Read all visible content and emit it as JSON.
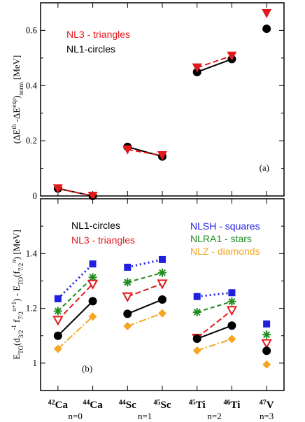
{
  "chart_data": [
    {
      "panel": "(a)",
      "type": "line",
      "ylabel_html": "(ΔE<tspan baseline-shift='super' font-size='9'>th</tspan> -ΔE<tspan baseline-shift='super' font-size='9'>exp</tspan>)<tspan baseline-shift='sub' font-size='9'>norm</tspan> [MeV]",
      "ylim": [
        0,
        0.7
      ],
      "yticks": [
        "0",
        "0.2",
        "0.4",
        "0.6"
      ],
      "legend": [
        {
          "text": "NL3 - triangles",
          "color": "#e31a1c"
        },
        {
          "text": "NL1-circles",
          "color": "#000000"
        }
      ],
      "series": [
        {
          "name": "NL1",
          "color": "#000000",
          "marker": "circle",
          "segments": [
            [
              [
                1,
                0.027
              ],
              [
                2,
                0.0
              ]
            ],
            [
              [
                3,
                0.178
              ],
              [
                4,
                0.143
              ]
            ],
            [
              [
                5,
                0.449
              ],
              [
                6,
                0.496
              ]
            ],
            [
              [
                7,
                0.606
              ]
            ]
          ]
        },
        {
          "name": "NL3",
          "color": "#e31a1c",
          "marker": "triangle-down",
          "dashed": true,
          "segments": [
            [
              [
                1,
                0.027
              ],
              [
                2,
                0.0
              ]
            ],
            [
              [
                3,
                0.168
              ],
              [
                4,
                0.147
              ]
            ],
            [
              [
                5,
                0.465
              ],
              [
                6,
                0.508
              ]
            ],
            [
              [
                7,
                0.662
              ]
            ]
          ]
        }
      ]
    },
    {
      "panel": "(b)",
      "type": "line",
      "ylabel_html": "E<tspan baseline-shift='sub' font-size='9'>TO</tspan>(d<tspan baseline-shift='sub' font-size='9'>3/2</tspan><tspan baseline-shift='super' font-size='9'>-1</tspan> f<tspan baseline-shift='sub' font-size='9'>7/2</tspan><tspan baseline-shift='super' font-size='9'>n+1</tspan>) - E<tspan baseline-shift='sub' font-size='9'>TO</tspan>(f<tspan baseline-shift='sub' font-size='9'>7/2</tspan><tspan baseline-shift='super' font-size='9'>n</tspan>) [MeV]",
      "ylim": [
        0.9,
        1.6
      ],
      "yticks": [
        "1",
        "1.2",
        "1.4"
      ],
      "legend_left": [
        {
          "text": "NL1-circles",
          "color": "#000000"
        },
        {
          "text": "NL3 - triangles",
          "color": "#e31a1c"
        }
      ],
      "legend_right": [
        {
          "text": "NLSH - squares",
          "color": "#1f1fe0"
        },
        {
          "text": "NLRA1 - stars",
          "color": "#1e8c1e"
        },
        {
          "text": "NLZ - diamonds",
          "color": "#f5a623"
        }
      ],
      "categories": [
        "42Ca",
        "44Ca",
        "44Sc",
        "45Sc",
        "45Ti",
        "46Ti",
        "47V"
      ],
      "category_labels": [
        {
          "mass": "42",
          "el": "Ca"
        },
        {
          "mass": "44",
          "el": "Ca"
        },
        {
          "mass": "44",
          "el": "Sc"
        },
        {
          "mass": "45",
          "el": "Sc"
        },
        {
          "mass": "45",
          "el": "Ti"
        },
        {
          "mass": "46",
          "el": "Ti"
        },
        {
          "mass": "47",
          "el": "V"
        }
      ],
      "groups": [
        "n=0",
        "n=1",
        "n=2",
        "n=3"
      ],
      "series": [
        {
          "name": "NLSH",
          "color": "#1f1fe0",
          "marker": "square",
          "dash": "2,4",
          "width": 3,
          "segments": [
            [
              [
                1,
                1.235
              ],
              [
                2,
                1.362
              ]
            ],
            [
              [
                3,
                1.35
              ],
              [
                4,
                1.378
              ]
            ],
            [
              [
                5,
                1.243
              ],
              [
                6,
                1.257
              ]
            ],
            [
              [
                7,
                1.143
              ]
            ]
          ]
        },
        {
          "name": "NLRA1",
          "color": "#1e8c1e",
          "marker": "star",
          "dash": "6,4",
          "width": 2,
          "segments": [
            [
              [
                1,
                1.19
              ],
              [
                2,
                1.313
              ]
            ],
            [
              [
                3,
                1.295
              ],
              [
                4,
                1.33
              ]
            ],
            [
              [
                5,
                1.186
              ],
              [
                6,
                1.225
              ]
            ],
            [
              [
                7,
                1.104
              ]
            ]
          ]
        },
        {
          "name": "NL3",
          "color": "#e31a1c",
          "marker": "triangle-open",
          "dash": "8,4",
          "width": 2,
          "segments": [
            [
              [
                1,
                1.157
              ],
              [
                2,
                1.289
              ]
            ],
            [
              [
                3,
                1.243
              ],
              [
                4,
                1.29
              ]
            ],
            [
              [
                5,
                1.092
              ],
              [
                6,
                1.193
              ]
            ],
            [
              [
                7,
                1.072
              ]
            ]
          ]
        },
        {
          "name": "NL1",
          "color": "#000000",
          "marker": "circle",
          "dash": "",
          "width": 2,
          "segments": [
            [
              [
                1,
                1.1
              ],
              [
                2,
                1.226
              ]
            ],
            [
              [
                3,
                1.18
              ],
              [
                4,
                1.232
              ]
            ],
            [
              [
                5,
                1.089
              ],
              [
                6,
                1.137
              ]
            ],
            [
              [
                7,
                1.045
              ]
            ]
          ]
        },
        {
          "name": "NLZ",
          "color": "#f5a623",
          "marker": "diamond",
          "dash": "10,3,2,3",
          "width": 2,
          "segments": [
            [
              [
                1,
                1.052
              ],
              [
                2,
                1.17
              ]
            ],
            [
              [
                3,
                1.135
              ],
              [
                4,
                1.182
              ]
            ],
            [
              [
                5,
                1.046
              ],
              [
                6,
                1.088
              ]
            ],
            [
              [
                7,
                0.995
              ]
            ]
          ]
        }
      ]
    }
  ]
}
